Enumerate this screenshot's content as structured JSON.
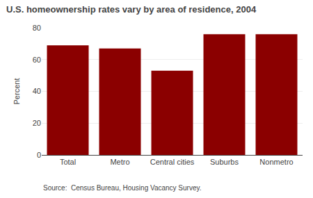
{
  "chart_data": {
    "type": "bar",
    "title": "U.S. homeownership rates vary by area of residence, 2004",
    "ylabel": "Percent",
    "annotations": [
      "Source:  Census Bureau, Housing Vacancy Survey."
    ],
    "categories": [
      "Total",
      "Metro",
      "Central cities",
      "Suburbs",
      "Nonmetro"
    ],
    "values": [
      69,
      67,
      53,
      76,
      76
    ],
    "color": "#8B0000",
    "ylim": [
      0,
      80
    ],
    "yticks": [
      0,
      20,
      40,
      60,
      80
    ],
    "grid": true
  }
}
